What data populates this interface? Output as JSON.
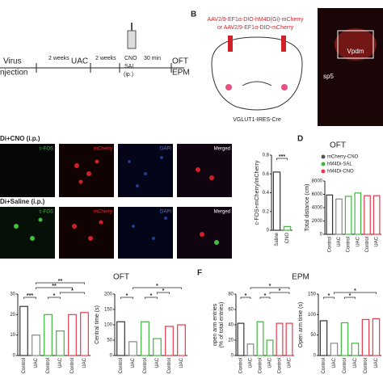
{
  "panel_a": {
    "virus": "Virus",
    "injection": "njection",
    "interval_1": "2 weeks",
    "uac": "UAC",
    "interval_2": "2 weeks",
    "drugs": [
      "CNO",
      "SAL",
      "(ip.)"
    ],
    "interval_3": "30 min",
    "tests": [
      "OFT",
      "EPM"
    ]
  },
  "panel_b": {
    "label": "B",
    "virus_1": "AAV2/9-EF1α-DIO-hM4D(Gi)-mCherry",
    "virus_2": "or AAV2/9-EF1α-DIO-mCherry",
    "mouse_line": "VGLUT1-IRES-Cre",
    "region": "Vpdm",
    "landmark": "sp5"
  },
  "panel_c": {
    "rows": [
      "Di+CNO (i.p.)",
      "Di+Saline (i.p.)"
    ],
    "channels": [
      "c-FOS",
      "mCherry",
      "DAPI",
      "Merged"
    ],
    "chart": {
      "type": "bar",
      "ylabel": "c-FOS+mCherry/mCherry",
      "categories": [
        "Saline",
        "CNO"
      ],
      "values": [
        0.62,
        0.04
      ],
      "colors": [
        "#333333",
        "#3cb83c"
      ],
      "ylim": [
        0,
        0.8
      ],
      "yticks": [
        0,
        0.2,
        0.4,
        0.6,
        0.8
      ],
      "significance": [
        "***"
      ]
    }
  },
  "panel_d": {
    "label": "D",
    "title": "OFT",
    "legend": [
      {
        "name": "mCherry-CNO",
        "color": "#555555"
      },
      {
        "name": "hM4Di-SAL",
        "color": "#3cb83c"
      },
      {
        "name": "hM4Di-CNO",
        "color": "#e8394a"
      }
    ],
    "chart": {
      "type": "bar",
      "ylabel": "Total distance (cm)",
      "categories": [
        "Control",
        "UAC",
        "Control",
        "UAC",
        "Control",
        "UAC"
      ],
      "values": [
        5900,
        5300,
        5700,
        6200,
        5800,
        5800
      ],
      "colors": [
        "#333333",
        "#888888",
        "#3cb83c",
        "#3cb83c",
        "#e8394a",
        "#e8394a"
      ],
      "ylim": [
        0,
        8000
      ],
      "yticks": [
        0,
        2000,
        4000,
        6000,
        8000
      ],
      "significance": []
    }
  },
  "panel_e": {
    "title": "OFT",
    "charts": [
      {
        "type": "bar",
        "categories": [
          "Control",
          "UAC",
          "Control",
          "UAC",
          "Control",
          "UAC"
        ],
        "values": [
          24,
          10,
          20,
          12,
          20,
          21
        ],
        "colors": [
          "#333333",
          "#888888",
          "#3cb83c",
          "#3cb83c",
          "#e8394a",
          "#e8394a"
        ],
        "ylim": [
          0,
          30
        ],
        "yticks": [
          0,
          10,
          20,
          30
        ],
        "significance": [
          "***",
          "*",
          "*",
          "**",
          "**"
        ]
      },
      {
        "type": "bar",
        "ylabel": "Central time (s)",
        "categories": [
          "Control",
          "UAC",
          "Control",
          "UAC",
          "Control",
          "UAC"
        ],
        "values": [
          110,
          45,
          110,
          55,
          95,
          100
        ],
        "colors": [
          "#333333",
          "#888888",
          "#3cb83c",
          "#3cb83c",
          "#e8394a",
          "#e8394a"
        ],
        "ylim": [
          0,
          200
        ],
        "yticks": [
          0,
          50,
          100,
          150,
          200
        ],
        "significance": [
          "*",
          "*",
          "*",
          "*"
        ]
      }
    ]
  },
  "panel_f": {
    "label": "F",
    "title": "EPM",
    "charts": [
      {
        "type": "bar",
        "ylabel": [
          "open arm entries",
          "(% of total entries)"
        ],
        "categories": [
          "Control",
          "UAC",
          "Control",
          "UAC",
          "Control",
          "UAC"
        ],
        "values": [
          42,
          15,
          44,
          20,
          42,
          42
        ],
        "colors": [
          "#333333",
          "#888888",
          "#3cb83c",
          "#3cb83c",
          "#e8394a",
          "#e8394a"
        ],
        "ylim": [
          0,
          80
        ],
        "yticks": [
          0,
          20,
          40,
          60,
          80
        ],
        "significance": [
          "*",
          "*",
          "*",
          "*"
        ]
      },
      {
        "type": "bar",
        "ylabel": "Open arm time (s)",
        "categories": [
          "Control",
          "UAC",
          "Control",
          "UAC",
          "Control",
          "UAC"
        ],
        "values": [
          85,
          30,
          80,
          30,
          88,
          90
        ],
        "colors": [
          "#333333",
          "#888888",
          "#3cb83c",
          "#3cb83c",
          "#e8394a",
          "#e8394a"
        ],
        "ylim": [
          0,
          150
        ],
        "yticks": [
          0,
          50,
          100,
          150
        ],
        "significance": [
          "*",
          "*",
          "*"
        ]
      }
    ]
  }
}
